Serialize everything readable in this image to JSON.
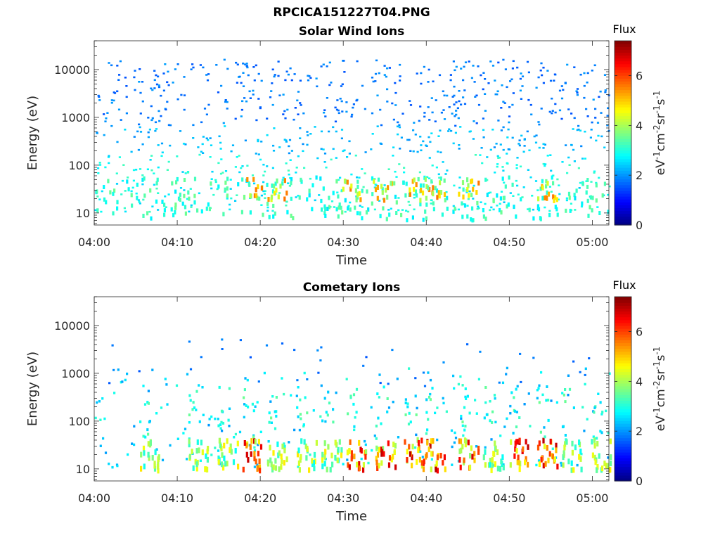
{
  "figure": {
    "title": "RPCICA151227T04.PNG"
  },
  "chart_data": [
    {
      "type": "heatmap",
      "title": "Solar Wind Ions",
      "xlabel": "Time",
      "ylabel": "Energy (eV)",
      "x_ticks": [
        "04:00",
        "04:10",
        "04:20",
        "04:30",
        "04:40",
        "04:50",
        "05:00"
      ],
      "xlim_minutes": [
        0,
        62
      ],
      "y_ticks": [
        "10",
        "100",
        "1000",
        "10000"
      ],
      "y_scale": "log",
      "ylim": [
        5.6,
        40000
      ],
      "colorbar": {
        "label": "Flux",
        "units": "eV-1cm-2sr-1s-1",
        "ticks": [
          "0",
          "2",
          "4",
          "6"
        ],
        "range": [
          0,
          7.4
        ],
        "colormap": "jet"
      },
      "description_points": "sparse low-flux (1.5-3) counts spread across 10-15000 eV; moderate bursts (3-5.5) at 15-40 eV near 04:19, 04:31-04:35, 04:38-04:40, 04:45, 04:54"
    },
    {
      "type": "heatmap",
      "title": "Cometary Ions",
      "xlabel": "Time",
      "ylabel": "Energy (eV)",
      "x_ticks": [
        "04:00",
        "04:10",
        "04:20",
        "04:30",
        "04:40",
        "04:50",
        "05:00"
      ],
      "xlim_minutes": [
        0,
        62
      ],
      "y_ticks": [
        "10",
        "100",
        "1000",
        "10000"
      ],
      "y_scale": "log",
      "ylim": [
        5.6,
        40000
      ],
      "colorbar": {
        "label": "Flux",
        "units": "eV-1cm-2sr-1s-1",
        "ticks": [
          "0",
          "2",
          "4",
          "6"
        ],
        "range": [
          0,
          7.4
        ],
        "colormap": "jet"
      },
      "description_points": "intense bursts (5-7) at 10-40 eV near 04:19, 04:30-04:35, 04:38-04:41, 04:45, 04:48, 04:51, 04:54; tails extending to ~1000 eV"
    }
  ]
}
